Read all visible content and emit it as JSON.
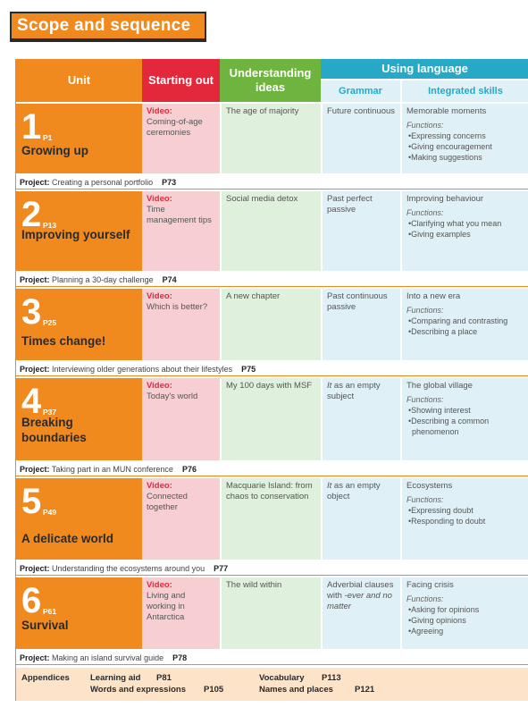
{
  "title": "Scope and sequence",
  "headers": {
    "unit": "Unit",
    "starting_out": "Starting out",
    "understanding": "Understanding ideas",
    "using_language": "Using language",
    "grammar": "Grammar",
    "integrated": "Integrated skills"
  },
  "project_label": "Project:",
  "video_label": "Video:",
  "functions_label": "Functions:",
  "units": [
    {
      "num": "1",
      "page": "P1",
      "name": "Growing up",
      "video": "Coming-of-age ceremonies",
      "understanding": "The age of majority",
      "grammar": "Future continuous",
      "skill": "Memorable moments",
      "functions": [
        "•Expressing concerns",
        "•Giving encouragement",
        "•Making suggestions"
      ],
      "project": "Creating a personal portfolio",
      "project_page": "P73"
    },
    {
      "num": "2",
      "page": "P13",
      "name": "Improving yourself",
      "video": "Time management tips",
      "understanding": "Social media detox",
      "grammar": "Past perfect passive",
      "skill": "Improving behaviour",
      "functions": [
        "•Clarifying what you mean",
        "•Giving examples"
      ],
      "project": "Planning a 30-day challenge",
      "project_page": "P74"
    },
    {
      "num": "3",
      "page": "P25",
      "name": "Times change!",
      "video": "Which is better?",
      "understanding": "A new chapter",
      "grammar": "Past continuous passive",
      "skill": "Into a new era",
      "functions": [
        "•Comparing and contrasting",
        "•Describing a place"
      ],
      "project": "Interviewing older generations about their lifestyles",
      "project_page": "P75"
    },
    {
      "num": "4",
      "page": "P37",
      "name": "Breaking boundaries",
      "video": "Today's world",
      "understanding": "My 100 days with MSF",
      "grammar_it": "It",
      "grammar": "as an empty subject",
      "skill": "The global village",
      "functions": [
        "•Showing interest",
        "•Describing a common phenomenon"
      ],
      "project": "Taking part in an MUN conference",
      "project_page": "P76"
    },
    {
      "num": "5",
      "page": "P49",
      "name": "A delicate world",
      "video": "Connected together",
      "understanding": "Macquarie Island: from chaos to conservation",
      "grammar_it": "It",
      "grammar": "as an empty object",
      "skill": "Ecosystems",
      "functions": [
        "•Expressing doubt",
        "•Responding to doubt"
      ],
      "project": "Understanding the ecosystems around you",
      "project_page": "P77"
    },
    {
      "num": "6",
      "page": "P61",
      "name": "Survival",
      "video": "Living and working in Antarctica",
      "understanding": "The wild within",
      "grammar": "Adverbial clauses with ",
      "grammar_it": "-ever and no matter",
      "skill": "Facing crisis",
      "functions": [
        "•Asking for opinions",
        "•Giving opinions",
        "•Agreeing"
      ],
      "project": "Making an island survival guide",
      "project_page": "P78"
    }
  ],
  "appendices": {
    "label": "Appendices",
    "learning_aid": "Learning aid",
    "learning_aid_page": "P81",
    "words": "Words and expressions",
    "words_page": "P105",
    "vocab": "Vocabulary",
    "vocab_page": "P113",
    "names": "Names and places",
    "names_page": "P121"
  }
}
